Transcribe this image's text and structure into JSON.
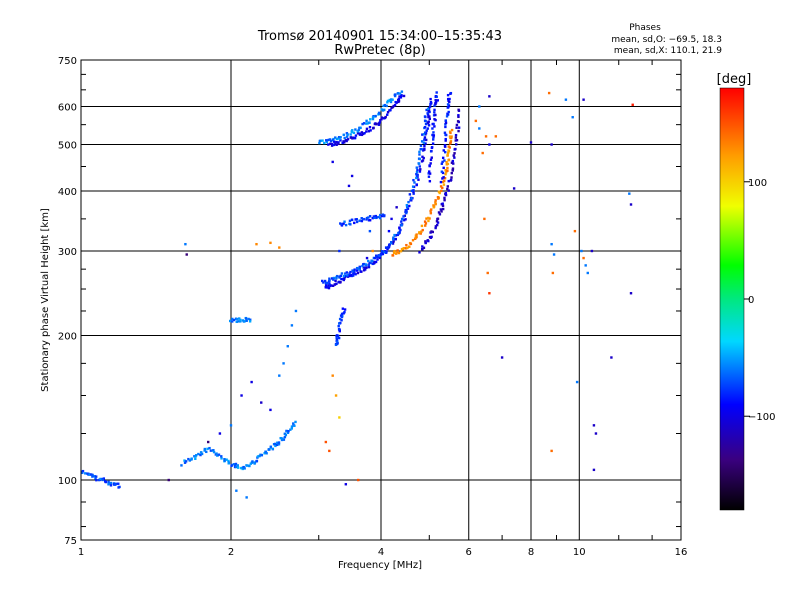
{
  "chart_data": {
    "type": "scatter",
    "title": "Tromsø 20140901 15:34:00–15:35:43",
    "subtitle": "RwPretec (8p)",
    "xlabel": "Frequency [MHz]",
    "ylabel": "Stationary phase Virtual Height [km]",
    "x_scale": "log",
    "y_scale": "log",
    "xlim": [
      1,
      16
    ],
    "ylim": [
      75,
      750
    ],
    "x_ticks": [
      1,
      2,
      4,
      6,
      8,
      10,
      16
    ],
    "x_tick_labels": [
      "1",
      "2",
      "4",
      "6",
      "8",
      "10",
      "16"
    ],
    "y_ticks": [
      75,
      100,
      200,
      300,
      400,
      500,
      600,
      750
    ],
    "y_tick_labels": [
      "75",
      "100",
      "200",
      "300",
      "400",
      "500",
      "600",
      "750"
    ],
    "grid": true,
    "stats": {
      "title": "Phases",
      "line_o": "mean, sd,O: −69.5, 18.3",
      "line_x": "mean, sd,X: 110.1, 21.9"
    },
    "colorbar": {
      "label": "[deg]",
      "range": [
        -180,
        180
      ],
      "ticks": [
        100,
        0,
        -100
      ],
      "tick_labels": [
        "100",
        "0",
        "−100"
      ]
    },
    "traces": [
      {
        "name_hint": "",
        "phase": -95,
        "points": [
          [
            3.1,
            252
          ],
          [
            3.2,
            255
          ],
          [
            3.35,
            262
          ],
          [
            3.5,
            268
          ],
          [
            3.7,
            276
          ],
          [
            3.9,
            286
          ],
          [
            4.1,
            300
          ],
          [
            4.3,
            322
          ],
          [
            4.5,
            360
          ],
          [
            4.7,
            410
          ],
          [
            4.85,
            470
          ],
          [
            4.95,
            530
          ],
          [
            5.0,
            580
          ],
          [
            5.05,
            625
          ]
        ]
      },
      {
        "name_hint": "",
        "phase": -70,
        "points": [
          [
            3.05,
            258
          ],
          [
            3.2,
            262
          ],
          [
            3.4,
            268
          ],
          [
            3.6,
            276
          ],
          [
            3.8,
            285
          ],
          [
            4.0,
            296
          ],
          [
            4.2,
            312
          ],
          [
            4.4,
            340
          ],
          [
            4.55,
            380
          ],
          [
            4.7,
            430
          ],
          [
            4.8,
            480
          ],
          [
            4.9,
            540
          ],
          [
            4.95,
            600
          ]
        ]
      },
      {
        "name_hint": "",
        "phase": 130,
        "points": [
          [
            4.2,
            296
          ],
          [
            4.4,
            300
          ],
          [
            4.6,
            310
          ],
          [
            4.8,
            330
          ],
          [
            5.0,
            355
          ],
          [
            5.2,
            385
          ],
          [
            5.35,
            420
          ],
          [
            5.45,
            460
          ],
          [
            5.5,
            500
          ],
          [
            5.55,
            540
          ]
        ]
      },
      {
        "name_hint": "",
        "phase": -110,
        "points": [
          [
            4.8,
            300
          ],
          [
            5.0,
            318
          ],
          [
            5.2,
            345
          ],
          [
            5.35,
            380
          ],
          [
            5.5,
            420
          ],
          [
            5.6,
            470
          ],
          [
            5.7,
            530
          ],
          [
            5.75,
            600
          ]
        ]
      },
      {
        "name_hint": "",
        "phase": -100,
        "points": [
          [
            3.15,
            500
          ],
          [
            3.3,
            505
          ],
          [
            3.5,
            515
          ],
          [
            3.7,
            530
          ],
          [
            3.9,
            550
          ],
          [
            4.1,
            575
          ],
          [
            4.3,
            610
          ],
          [
            4.45,
            640
          ]
        ]
      },
      {
        "name_hint": "",
        "phase": -60,
        "points": [
          [
            3.0,
            505
          ],
          [
            3.2,
            512
          ],
          [
            3.4,
            522
          ],
          [
            3.6,
            538
          ],
          [
            3.8,
            560
          ],
          [
            4.0,
            590
          ],
          [
            4.2,
            620
          ],
          [
            4.4,
            650
          ]
        ]
      },
      {
        "name_hint": "",
        "phase": -90,
        "points": [
          [
            5.0,
            420
          ],
          [
            5.05,
            480
          ],
          [
            5.1,
            540
          ],
          [
            5.15,
            600
          ],
          [
            5.2,
            640
          ]
        ]
      },
      {
        "name_hint": "",
        "phase": -85,
        "points": [
          [
            5.3,
            420
          ],
          [
            5.35,
            480
          ],
          [
            5.4,
            540
          ],
          [
            5.45,
            600
          ],
          [
            5.5,
            640
          ]
        ]
      },
      {
        "name_hint": "",
        "phase": -75,
        "points": [
          [
            3.3,
            340
          ],
          [
            3.5,
            345
          ],
          [
            3.7,
            350
          ],
          [
            3.9,
            352
          ],
          [
            4.1,
            355
          ]
        ]
      },
      {
        "name_hint": "",
        "phase": -80,
        "points": [
          [
            3.25,
            190
          ],
          [
            3.28,
            200
          ],
          [
            3.32,
            215
          ],
          [
            3.38,
            230
          ]
        ]
      },
      {
        "name_hint": "",
        "phase": -70,
        "points": [
          [
            1.0,
            104
          ],
          [
            1.05,
            102
          ],
          [
            1.1,
            100
          ],
          [
            1.15,
            98
          ],
          [
            1.2,
            97
          ]
        ]
      },
      {
        "name_hint": "",
        "phase": -60,
        "points": [
          [
            1.6,
            108
          ],
          [
            1.7,
            112
          ],
          [
            1.8,
            116
          ],
          [
            1.9,
            112
          ],
          [
            2.0,
            108
          ],
          [
            2.1,
            106
          ],
          [
            2.2,
            108
          ],
          [
            2.3,
            112
          ],
          [
            2.4,
            116
          ],
          [
            2.5,
            120
          ],
          [
            2.6,
            126
          ],
          [
            2.7,
            132
          ]
        ]
      },
      {
        "name_hint": "",
        "phase": -60,
        "points": [
          [
            2.0,
            215
          ],
          [
            2.1,
            215
          ],
          [
            2.2,
            216
          ]
        ]
      }
    ],
    "scatter": [
      {
        "x": 1.62,
        "y": 310,
        "phase": -60
      },
      {
        "x": 1.63,
        "y": 295,
        "phase": -140
      },
      {
        "x": 2.25,
        "y": 310,
        "phase": 130
      },
      {
        "x": 2.4,
        "y": 312,
        "phase": 130
      },
      {
        "x": 2.5,
        "y": 305,
        "phase": 130
      },
      {
        "x": 2.7,
        "y": 225,
        "phase": -60
      },
      {
        "x": 2.65,
        "y": 210,
        "phase": -60
      },
      {
        "x": 2.6,
        "y": 190,
        "phase": -60
      },
      {
        "x": 2.55,
        "y": 175,
        "phase": -60
      },
      {
        "x": 2.5,
        "y": 165,
        "phase": -60
      },
      {
        "x": 2.2,
        "y": 160,
        "phase": -100
      },
      {
        "x": 2.1,
        "y": 150,
        "phase": -100
      },
      {
        "x": 2.3,
        "y": 145,
        "phase": -110
      },
      {
        "x": 2.4,
        "y": 140,
        "phase": -100
      },
      {
        "x": 2.0,
        "y": 130,
        "phase": -60
      },
      {
        "x": 1.9,
        "y": 125,
        "phase": -100
      },
      {
        "x": 1.8,
        "y": 120,
        "phase": -140
      },
      {
        "x": 2.05,
        "y": 95,
        "phase": -60
      },
      {
        "x": 2.15,
        "y": 92,
        "phase": -60
      },
      {
        "x": 1.5,
        "y": 100,
        "phase": -140
      },
      {
        "x": 3.2,
        "y": 165,
        "phase": 130
      },
      {
        "x": 3.25,
        "y": 150,
        "phase": 120
      },
      {
        "x": 3.1,
        "y": 120,
        "phase": 150
      },
      {
        "x": 3.15,
        "y": 115,
        "phase": 150
      },
      {
        "x": 3.3,
        "y": 135,
        "phase": 100
      },
      {
        "x": 3.4,
        "y": 98,
        "phase": -100
      },
      {
        "x": 3.6,
        "y": 100,
        "phase": 150
      },
      {
        "x": 6.2,
        "y": 560,
        "phase": 140
      },
      {
        "x": 6.3,
        "y": 540,
        "phase": -60
      },
      {
        "x": 6.5,
        "y": 520,
        "phase": 140
      },
      {
        "x": 6.6,
        "y": 500,
        "phase": -100
      },
      {
        "x": 6.4,
        "y": 480,
        "phase": 140
      },
      {
        "x": 6.8,
        "y": 520,
        "phase": 140
      },
      {
        "x": 6.3,
        "y": 600,
        "phase": -60
      },
      {
        "x": 6.6,
        "y": 630,
        "phase": -110
      },
      {
        "x": 6.45,
        "y": 350,
        "phase": 140
      },
      {
        "x": 6.55,
        "y": 270,
        "phase": 140
      },
      {
        "x": 6.6,
        "y": 245,
        "phase": 160
      },
      {
        "x": 7.0,
        "y": 180,
        "phase": -110
      },
      {
        "x": 7.4,
        "y": 405,
        "phase": -110
      },
      {
        "x": 8.0,
        "y": 505,
        "phase": -110
      },
      {
        "x": 8.7,
        "y": 640,
        "phase": 140
      },
      {
        "x": 8.8,
        "y": 500,
        "phase": -110
      },
      {
        "x": 8.8,
        "y": 310,
        "phase": -60
      },
      {
        "x": 8.9,
        "y": 295,
        "phase": -60
      },
      {
        "x": 8.85,
        "y": 270,
        "phase": 140
      },
      {
        "x": 8.8,
        "y": 115,
        "phase": 140
      },
      {
        "x": 9.4,
        "y": 620,
        "phase": -60
      },
      {
        "x": 9.7,
        "y": 570,
        "phase": -60
      },
      {
        "x": 9.8,
        "y": 330,
        "phase": 140
      },
      {
        "x": 9.9,
        "y": 160,
        "phase": -60
      },
      {
        "x": 10.1,
        "y": 300,
        "phase": -60
      },
      {
        "x": 10.2,
        "y": 290,
        "phase": 140
      },
      {
        "x": 10.3,
        "y": 280,
        "phase": -60
      },
      {
        "x": 10.4,
        "y": 270,
        "phase": -60
      },
      {
        "x": 10.6,
        "y": 300,
        "phase": -110
      },
      {
        "x": 10.2,
        "y": 620,
        "phase": -110
      },
      {
        "x": 10.7,
        "y": 130,
        "phase": -110
      },
      {
        "x": 10.8,
        "y": 125,
        "phase": -110
      },
      {
        "x": 10.7,
        "y": 105,
        "phase": -110
      },
      {
        "x": 11.6,
        "y": 180,
        "phase": -110
      },
      {
        "x": 12.6,
        "y": 395,
        "phase": -60
      },
      {
        "x": 12.7,
        "y": 375,
        "phase": -110
      },
      {
        "x": 12.8,
        "y": 605,
        "phase": 170
      },
      {
        "x": 12.7,
        "y": 245,
        "phase": -110
      },
      {
        "x": 4.2,
        "y": 350,
        "phase": -100
      },
      {
        "x": 4.3,
        "y": 370,
        "phase": -110
      },
      {
        "x": 4.15,
        "y": 330,
        "phase": -90
      },
      {
        "x": 3.5,
        "y": 430,
        "phase": -100
      },
      {
        "x": 3.45,
        "y": 410,
        "phase": -100
      },
      {
        "x": 3.2,
        "y": 460,
        "phase": -100
      },
      {
        "x": 3.3,
        "y": 300,
        "phase": -80
      },
      {
        "x": 3.75,
        "y": 290,
        "phase": -100
      },
      {
        "x": 3.85,
        "y": 300,
        "phase": 130
      },
      {
        "x": 3.8,
        "y": 330,
        "phase": -70
      }
    ]
  }
}
